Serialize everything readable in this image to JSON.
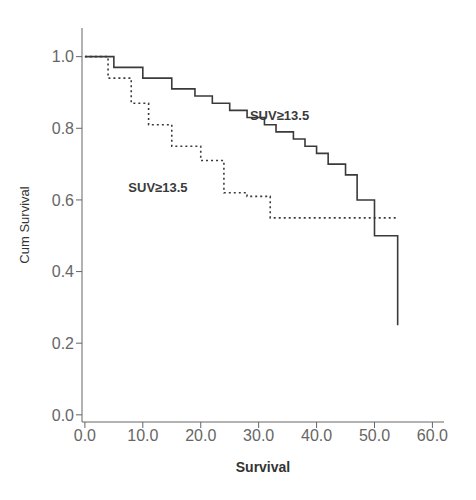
{
  "chart_data": {
    "type": "step",
    "xlabel": "Survival",
    "ylabel": "Cum Survival",
    "xlim": [
      -0.5,
      62
    ],
    "ylim": [
      -0.02,
      1.08
    ],
    "xticks": [
      {
        "value": 0.0,
        "label": "0.0"
      },
      {
        "value": 10.0,
        "label": "10.0"
      },
      {
        "value": 20.0,
        "label": "20.0"
      },
      {
        "value": 30.0,
        "label": "30.0"
      },
      {
        "value": 40.0,
        "label": "40.0"
      },
      {
        "value": 50.0,
        "label": "50.0"
      },
      {
        "value": 60.0,
        "label": "60.0"
      }
    ],
    "yticks": [
      {
        "value": 0.0,
        "label": "0.0"
      },
      0.2,
      0.4,
      0.6,
      0.8,
      {
        "value": 1.0,
        "label": "1.0"
      }
    ],
    "grid": false,
    "series": [
      {
        "color": "#3a3a3a",
        "line_style": "solid",
        "x": [
          0,
          3,
          5,
          8,
          10,
          13,
          15,
          17,
          19,
          21,
          22,
          24,
          25,
          27,
          28,
          30,
          31,
          32,
          33,
          35,
          36,
          37,
          38,
          39,
          40,
          41,
          42,
          44,
          45,
          46,
          47,
          48,
          50,
          51,
          54
        ],
        "values": [
          1.0,
          1.0,
          0.97,
          0.97,
          0.94,
          0.94,
          0.91,
          0.91,
          0.89,
          0.89,
          0.87,
          0.87,
          0.85,
          0.85,
          0.83,
          0.83,
          0.81,
          0.81,
          0.79,
          0.79,
          0.77,
          0.77,
          0.75,
          0.75,
          0.73,
          0.73,
          0.7,
          0.7,
          0.67,
          0.67,
          0.6,
          0.6,
          0.5,
          0.5,
          0.25
        ]
      },
      {
        "color": "#3a3a3a",
        "line_style": "dotted",
        "x": [
          0,
          2,
          4,
          6,
          8,
          9,
          11,
          13,
          15,
          18,
          20,
          22,
          24,
          26,
          28,
          30,
          32,
          35,
          36,
          54
        ],
        "values": [
          1.0,
          1.0,
          0.94,
          0.94,
          0.87,
          0.87,
          0.81,
          0.81,
          0.75,
          0.75,
          0.71,
          0.71,
          0.62,
          0.62,
          0.61,
          0.61,
          0.55,
          0.55,
          0.55,
          0.55
        ]
      }
    ],
    "annotations": [
      {
        "text": "SUV≥13.5",
        "x": 28.5,
        "y": 0.835,
        "color": "#3a3a3a"
      },
      {
        "text": "SUV≥13.5",
        "x": 7.5,
        "y": 0.635,
        "color": "#3a3a3a"
      }
    ]
  }
}
